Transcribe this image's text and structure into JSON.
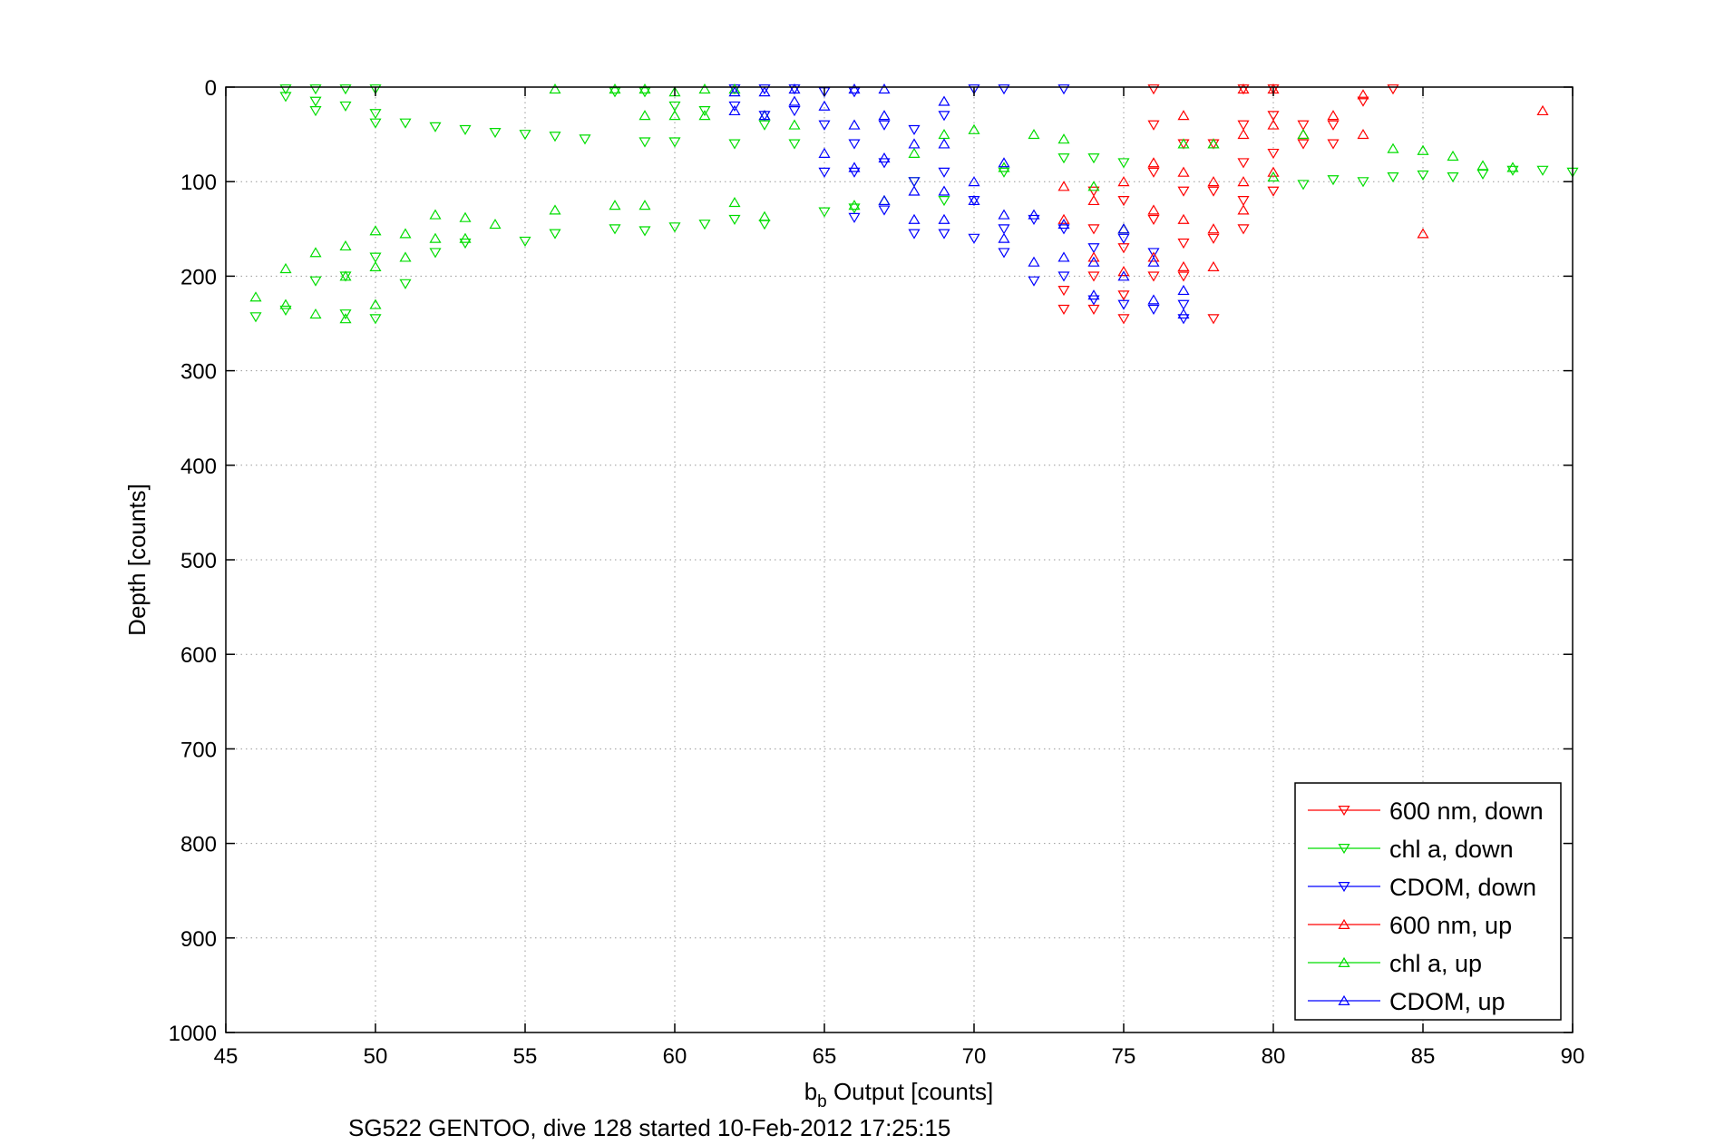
{
  "chart_data": {
    "type": "scatter",
    "xlabel_main": "b",
    "xlabel_sub": "b",
    "xlabel_rest": " Output [counts]",
    "ylabel": "Depth [counts]",
    "caption": "SG522 GENTOO, dive 128 started 10-Feb-2012 17:25:15",
    "xlim": [
      45,
      90
    ],
    "ylim": [
      0,
      1000
    ],
    "y_reversed": true,
    "grid": true,
    "legend_position": "bottom-right",
    "x_ticks": [
      "45",
      "50",
      "55",
      "60",
      "65",
      "70",
      "75",
      "80",
      "85",
      "90"
    ],
    "y_ticks": [
      "0",
      "100",
      "200",
      "300",
      "400",
      "500",
      "600",
      "700",
      "800",
      "900",
      "1000"
    ],
    "series": [
      {
        "name": "600 nm, down",
        "color": "#ff0000",
        "marker": "down",
        "points": [
          [
            73,
            215
          ],
          [
            73,
            235
          ],
          [
            74,
            110
          ],
          [
            74,
            150
          ],
          [
            74,
            200
          ],
          [
            74,
            235
          ],
          [
            75,
            120
          ],
          [
            75,
            170
          ],
          [
            75,
            220
          ],
          [
            75,
            245
          ],
          [
            76,
            2
          ],
          [
            76,
            40
          ],
          [
            76,
            90
          ],
          [
            76,
            140
          ],
          [
            76,
            200
          ],
          [
            77,
            60
          ],
          [
            77,
            110
          ],
          [
            77,
            165
          ],
          [
            77,
            200
          ],
          [
            78,
            60
          ],
          [
            78,
            110
          ],
          [
            78,
            160
          ],
          [
            78,
            245
          ],
          [
            79,
            2
          ],
          [
            79,
            40
          ],
          [
            79,
            80
          ],
          [
            79,
            120
          ],
          [
            79,
            150
          ],
          [
            80,
            2
          ],
          [
            80,
            30
          ],
          [
            80,
            70
          ],
          [
            80,
            110
          ],
          [
            81,
            40
          ],
          [
            81,
            60
          ],
          [
            82,
            40
          ],
          [
            82,
            60
          ],
          [
            83,
            15
          ],
          [
            84,
            2
          ]
        ]
      },
      {
        "name": "chl a, down",
        "color": "#00dd00",
        "marker": "down",
        "points": [
          [
            46,
            243
          ],
          [
            47,
            2
          ],
          [
            47,
            10
          ],
          [
            47,
            236
          ],
          [
            48,
            2
          ],
          [
            48,
            15
          ],
          [
            48,
            25
          ],
          [
            48,
            205
          ],
          [
            49,
            2
          ],
          [
            49,
            20
          ],
          [
            49,
            200
          ],
          [
            49,
            240
          ],
          [
            50,
            2
          ],
          [
            50,
            28
          ],
          [
            50,
            38
          ],
          [
            50,
            180
          ],
          [
            50,
            245
          ],
          [
            51,
            38
          ],
          [
            51,
            208
          ],
          [
            52,
            42
          ],
          [
            52,
            175
          ],
          [
            53,
            45
          ],
          [
            53,
            165
          ],
          [
            54,
            48
          ],
          [
            55,
            50
          ],
          [
            55,
            163
          ],
          [
            56,
            52
          ],
          [
            56,
            155
          ],
          [
            57,
            55
          ],
          [
            58,
            5
          ],
          [
            58,
            150
          ],
          [
            59,
            5
          ],
          [
            59,
            58
          ],
          [
            59,
            152
          ],
          [
            60,
            20
          ],
          [
            60,
            58
          ],
          [
            60,
            148
          ],
          [
            61,
            25
          ],
          [
            61,
            145
          ],
          [
            62,
            60
          ],
          [
            62,
            140
          ],
          [
            63,
            40
          ],
          [
            63,
            145
          ],
          [
            64,
            60
          ],
          [
            65,
            132
          ],
          [
            66,
            128
          ],
          [
            68,
            100
          ],
          [
            69,
            120
          ],
          [
            71,
            90
          ],
          [
            73,
            75
          ],
          [
            74,
            75
          ],
          [
            75,
            80
          ],
          [
            81,
            103
          ],
          [
            82,
            98
          ],
          [
            83,
            100
          ],
          [
            84,
            95
          ],
          [
            85,
            93
          ],
          [
            86,
            95
          ],
          [
            87,
            92
          ],
          [
            88,
            88
          ],
          [
            89,
            88
          ],
          [
            90,
            90
          ]
        ]
      },
      {
        "name": "CDOM, down",
        "color": "#0000ff",
        "marker": "down",
        "points": [
          [
            62,
            2
          ],
          [
            62,
            20
          ],
          [
            63,
            2
          ],
          [
            63,
            30
          ],
          [
            64,
            2
          ],
          [
            64,
            25
          ],
          [
            65,
            5
          ],
          [
            65,
            40
          ],
          [
            65,
            90
          ],
          [
            66,
            5
          ],
          [
            66,
            60
          ],
          [
            66,
            90
          ],
          [
            66,
            138
          ],
          [
            67,
            40
          ],
          [
            67,
            80
          ],
          [
            67,
            130
          ],
          [
            68,
            45
          ],
          [
            68,
            100
          ],
          [
            68,
            155
          ],
          [
            69,
            30
          ],
          [
            69,
            90
          ],
          [
            69,
            155
          ],
          [
            70,
            2
          ],
          [
            70,
            120
          ],
          [
            70,
            160
          ],
          [
            71,
            2
          ],
          [
            71,
            150
          ],
          [
            71,
            175
          ],
          [
            72,
            140
          ],
          [
            72,
            205
          ],
          [
            73,
            2
          ],
          [
            73,
            150
          ],
          [
            73,
            200
          ],
          [
            74,
            170
          ],
          [
            74,
            225
          ],
          [
            75,
            160
          ],
          [
            75,
            230
          ],
          [
            76,
            175
          ],
          [
            76,
            235
          ],
          [
            77,
            230
          ],
          [
            77,
            245
          ]
        ]
      },
      {
        "name": "600 nm, up",
        "color": "#ff0000",
        "marker": "up",
        "points": [
          [
            73,
            105
          ],
          [
            73,
            140
          ],
          [
            74,
            120
          ],
          [
            74,
            180
          ],
          [
            75,
            100
          ],
          [
            75,
            150
          ],
          [
            75,
            195
          ],
          [
            76,
            80
          ],
          [
            76,
            130
          ],
          [
            76,
            180
          ],
          [
            77,
            30
          ],
          [
            77,
            90
          ],
          [
            77,
            140
          ],
          [
            77,
            190
          ],
          [
            78,
            60
          ],
          [
            78,
            100
          ],
          [
            78,
            150
          ],
          [
            78,
            190
          ],
          [
            79,
            2
          ],
          [
            79,
            50
          ],
          [
            79,
            100
          ],
          [
            79,
            130
          ],
          [
            80,
            2
          ],
          [
            80,
            40
          ],
          [
            80,
            90
          ],
          [
            81,
            50
          ],
          [
            82,
            30
          ],
          [
            83,
            8
          ],
          [
            83,
            50
          ],
          [
            85,
            155
          ],
          [
            89,
            25
          ]
        ]
      },
      {
        "name": "chl a, up",
        "color": "#00dd00",
        "marker": "up",
        "points": [
          [
            46,
            222
          ],
          [
            47,
            192
          ],
          [
            47,
            230
          ],
          [
            48,
            175
          ],
          [
            48,
            240
          ],
          [
            49,
            168
          ],
          [
            49,
            200
          ],
          [
            49,
            245
          ],
          [
            50,
            152
          ],
          [
            50,
            190
          ],
          [
            50,
            230
          ],
          [
            51,
            155
          ],
          [
            51,
            180
          ],
          [
            52,
            135
          ],
          [
            52,
            160
          ],
          [
            53,
            138
          ],
          [
            53,
            160
          ],
          [
            54,
            145
          ],
          [
            56,
            130
          ],
          [
            56,
            2
          ],
          [
            58,
            2
          ],
          [
            58,
            125
          ],
          [
            59,
            2
          ],
          [
            59,
            30
          ],
          [
            59,
            125
          ],
          [
            60,
            5
          ],
          [
            60,
            30
          ],
          [
            61,
            2
          ],
          [
            61,
            30
          ],
          [
            62,
            2
          ],
          [
            62,
            122
          ],
          [
            63,
            30
          ],
          [
            63,
            137
          ],
          [
            64,
            40
          ],
          [
            66,
            125
          ],
          [
            67,
            120
          ],
          [
            68,
            70
          ],
          [
            69,
            50
          ],
          [
            70,
            45
          ],
          [
            71,
            85
          ],
          [
            72,
            50
          ],
          [
            73,
            55
          ],
          [
            74,
            105
          ],
          [
            75,
            150
          ],
          [
            77,
            60
          ],
          [
            78,
            60
          ],
          [
            80,
            95
          ],
          [
            81,
            50
          ],
          [
            84,
            65
          ],
          [
            85,
            67
          ],
          [
            86,
            73
          ],
          [
            87,
            83
          ],
          [
            88,
            85
          ]
        ]
      },
      {
        "name": "CDOM, up",
        "color": "#0000ff",
        "marker": "up",
        "points": [
          [
            62,
            5
          ],
          [
            62,
            25
          ],
          [
            63,
            5
          ],
          [
            63,
            30
          ],
          [
            64,
            2
          ],
          [
            64,
            15
          ],
          [
            65,
            20
          ],
          [
            65,
            70
          ],
          [
            66,
            2
          ],
          [
            66,
            40
          ],
          [
            66,
            85
          ],
          [
            67,
            2
          ],
          [
            67,
            30
          ],
          [
            67,
            75
          ],
          [
            67,
            120
          ],
          [
            68,
            60
          ],
          [
            68,
            110
          ],
          [
            68,
            140
          ],
          [
            69,
            15
          ],
          [
            69,
            60
          ],
          [
            69,
            110
          ],
          [
            69,
            140
          ],
          [
            70,
            100
          ],
          [
            70,
            120
          ],
          [
            71,
            80
          ],
          [
            71,
            135
          ],
          [
            71,
            160
          ],
          [
            72,
            135
          ],
          [
            72,
            185
          ],
          [
            73,
            145
          ],
          [
            73,
            180
          ],
          [
            74,
            185
          ],
          [
            74,
            220
          ],
          [
            75,
            150
          ],
          [
            75,
            200
          ],
          [
            76,
            185
          ],
          [
            76,
            225
          ],
          [
            77,
            215
          ],
          [
            77,
            240
          ]
        ]
      }
    ]
  }
}
